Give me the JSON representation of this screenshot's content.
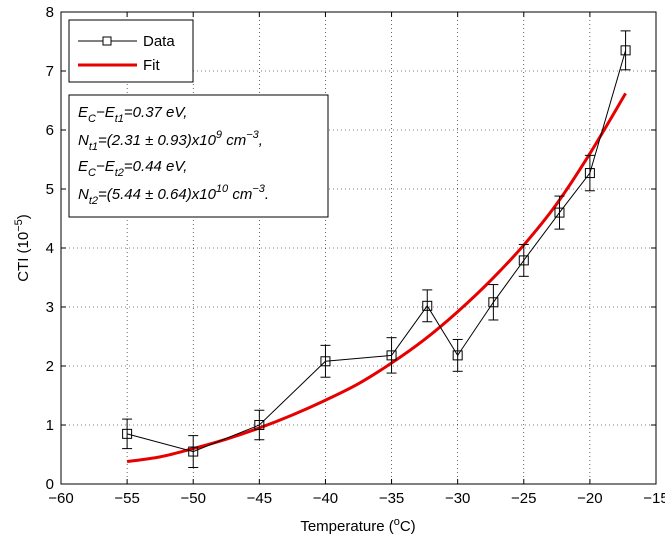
{
  "chart_data": {
    "type": "line",
    "xlabel": "Temperature (",
    "xlabel_sup": "o",
    "xlabel_end": "C)",
    "ylabel": "CTI (10",
    "ylabel_sup": "−5",
    "ylabel_end": ")",
    "xlim": [
      -60,
      -15
    ],
    "ylim": [
      0,
      8
    ],
    "xticks": [
      -60,
      -55,
      -50,
      -45,
      -40,
      -35,
      -30,
      -25,
      -20,
      -15
    ],
    "yticks": [
      0,
      1,
      2,
      3,
      4,
      5,
      6,
      7,
      8
    ],
    "xtick_labels": [
      "−60",
      "−55",
      "−50",
      "−45",
      "−40",
      "−35",
      "−30",
      "−25",
      "−20",
      "−15"
    ],
    "ytick_labels": [
      "0",
      "1",
      "2",
      "3",
      "4",
      "5",
      "6",
      "7",
      "8"
    ],
    "grid": true,
    "legend_position": "top-left",
    "series": [
      {
        "name": "Data",
        "color": "#000000",
        "marker": "square",
        "x": [
          -55,
          -50,
          -45,
          -40,
          -35,
          -32.3,
          -30,
          -27.3,
          -25,
          -22.3,
          -20,
          -17.3
        ],
        "y": [
          0.85,
          0.55,
          1.0,
          2.08,
          2.18,
          3.02,
          2.18,
          3.08,
          3.79,
          4.6,
          5.27,
          7.35
        ],
        "err": [
          0.25,
          0.27,
          0.25,
          0.27,
          0.3,
          0.27,
          0.27,
          0.3,
          0.27,
          0.28,
          0.3,
          0.33
        ]
      },
      {
        "name": "Fit",
        "color": "#e60000",
        "x": [
          -55,
          -52.5,
          -50,
          -47.5,
          -45,
          -42.5,
          -40,
          -37.5,
          -35,
          -32.5,
          -30,
          -27.5,
          -25,
          -22.5,
          -20,
          -17.3
        ],
        "y": [
          0.38,
          0.46,
          0.6,
          0.76,
          0.95,
          1.17,
          1.42,
          1.7,
          2.05,
          2.45,
          2.92,
          3.45,
          4.05,
          4.75,
          5.6,
          6.62
        ]
      }
    ],
    "annotation": {
      "line1_a": "E",
      "line1_a_sub": "C",
      "line1_b": "−E",
      "line1_b_sub": "t1",
      "line1_c": "=0.37 eV,",
      "line2_a": "N",
      "line2_a_sub": "t1",
      "line2_b": "=(2.31 ± 0.93)x10",
      "line2_b_sup": "9",
      "line2_c": " cm",
      "line2_c_sup": "−3",
      "line2_d": ",",
      "line3_a": "E",
      "line3_a_sub": "C",
      "line3_b": "−E",
      "line3_b_sub": "t2",
      "line3_c": "=0.44 eV,",
      "line4_a": "N",
      "line4_a_sub": "t2",
      "line4_b": "=(5.44 ± 0.64)x10",
      "line4_b_sup": "10",
      "line4_c": " cm",
      "line4_c_sup": "−3",
      "line4_d": "."
    }
  }
}
